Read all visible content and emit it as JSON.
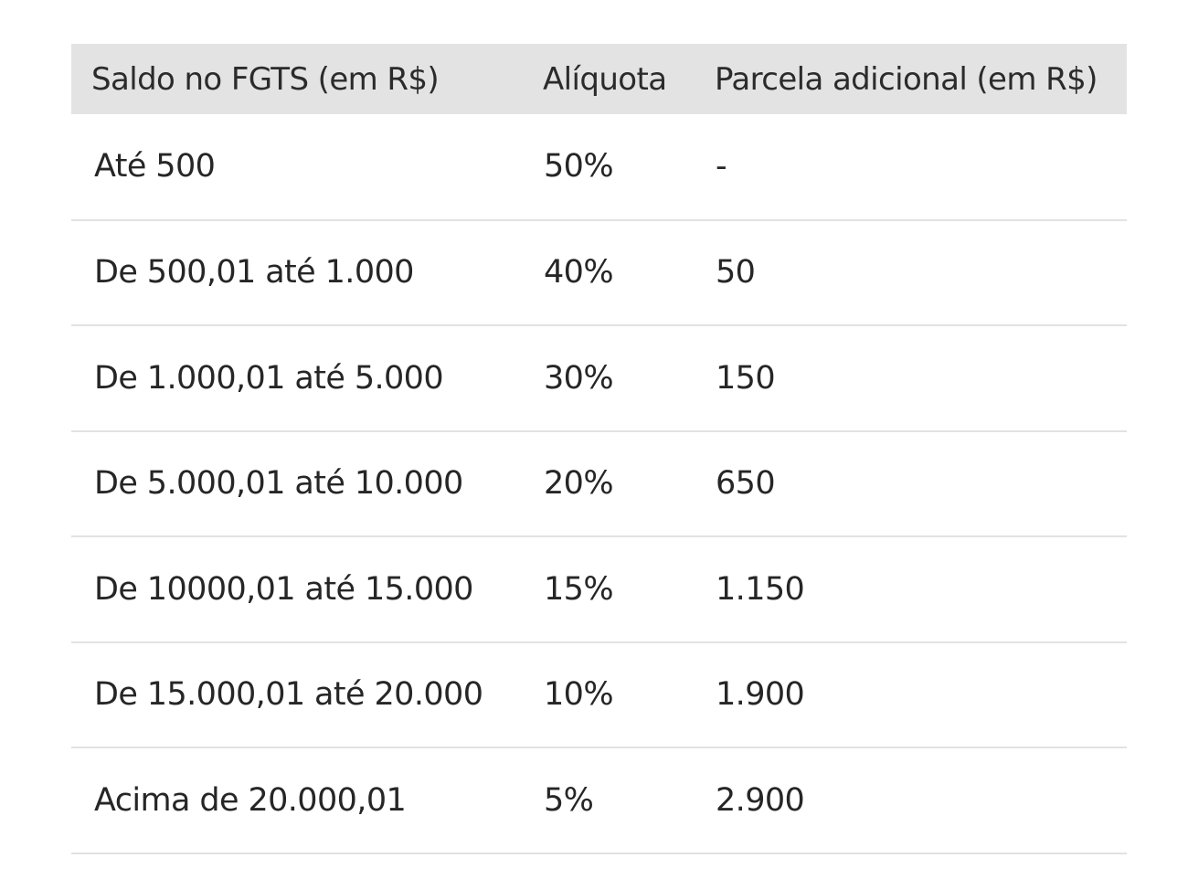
{
  "table": {
    "headers": [
      "Saldo no FGTS (em R$)",
      "Alíquota",
      "Parcela adicional (em R$)"
    ],
    "rows": [
      [
        "Até 500",
        "50%",
        "-"
      ],
      [
        "De 500,01 até 1.000",
        "40%",
        "50"
      ],
      [
        "De 1.000,01 até 5.000",
        "30%",
        "150"
      ],
      [
        "De 5.000,01 até 10.000",
        "20%",
        "650"
      ],
      [
        "De 10000,01 até 15.000",
        "15%",
        "1.150"
      ],
      [
        "De 15.000,01 até 20.000",
        "10%",
        "1.900"
      ],
      [
        "Acima de 20.000,01",
        "5%",
        "2.900"
      ]
    ]
  }
}
